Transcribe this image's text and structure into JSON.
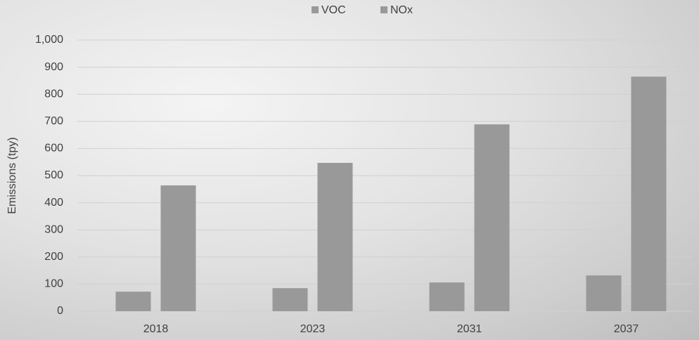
{
  "chart_data": {
    "type": "bar",
    "y_label": "Emissions (tpy)",
    "categories": [
      "2018",
      "2023",
      "2031",
      "2037"
    ],
    "series": [
      {
        "name": "VOC",
        "color": "#999999",
        "values": [
          72,
          85,
          106,
          132
        ]
      },
      {
        "name": "NOx",
        "color": "#999999",
        "values": [
          464,
          547,
          689,
          865
        ]
      }
    ],
    "ylim": [
      0,
      1000
    ],
    "yticks": [
      0,
      100,
      200,
      300,
      400,
      500,
      600,
      700,
      800,
      900,
      {
        "value": 1000,
        "label": "1,000"
      }
    ],
    "grid": true,
    "legend": "top"
  }
}
